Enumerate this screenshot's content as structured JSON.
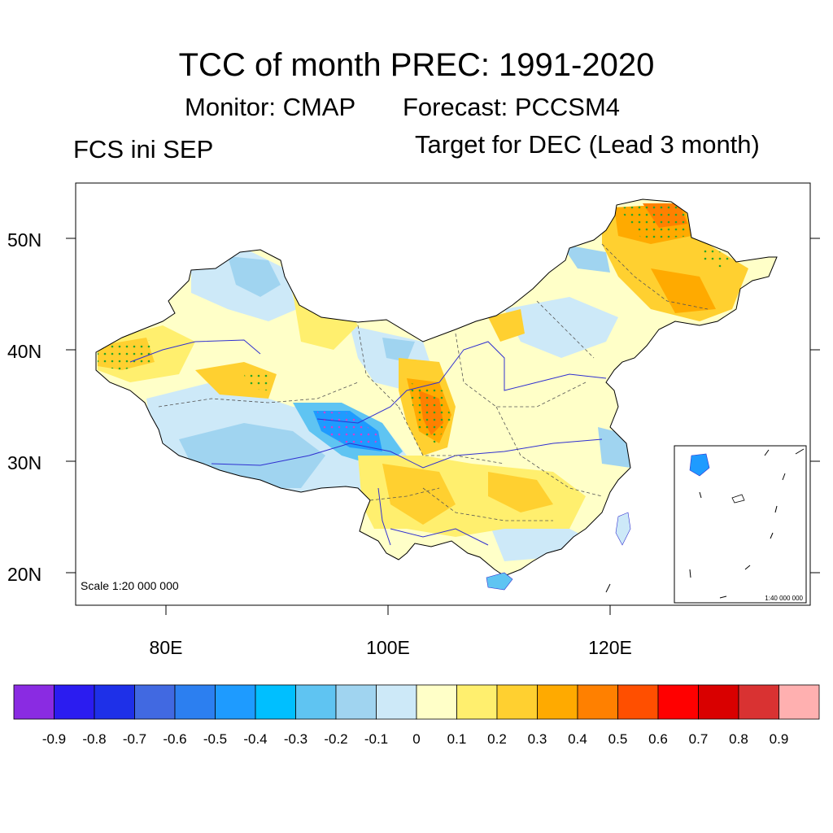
{
  "header": {
    "title": "TCC of month PREC: 1991-2020",
    "monitor": "Monitor: CMAP",
    "forecast": "Forecast: PCCSM4",
    "left_label": "FCS ini SEP",
    "right_label": "Target for DEC (Lead 3 month)"
  },
  "map": {
    "lat_labels": [
      "50N",
      "40N",
      "30N",
      "20N"
    ],
    "lon_labels": [
      "80E",
      "100E",
      "120E"
    ],
    "scale_main": "Scale 1:20 000 000",
    "scale_inset": "1:40 000 000"
  },
  "colorbar": {
    "labels": [
      "-0.9",
      "-0.8",
      "-0.7",
      "-0.6",
      "-0.5",
      "-0.4",
      "-0.3",
      "-0.2",
      "-0.1",
      "0",
      "0.1",
      "0.2",
      "0.3",
      "0.4",
      "0.5",
      "0.6",
      "0.7",
      "0.8",
      "0.9"
    ],
    "colors": [
      "#8a2be2",
      "#2b1cf0",
      "#1e30e8",
      "#4169e1",
      "#2c7ff0",
      "#1e9bff",
      "#00bfff",
      "#5fc4f2",
      "#a0d4f0",
      "#cde9f8",
      "#ffffc8",
      "#ffef6e",
      "#ffd030",
      "#ffaa00",
      "#ff8000",
      "#ff4f00",
      "#ff0000",
      "#d90000",
      "#d93232",
      "#ffb0b0"
    ]
  }
}
